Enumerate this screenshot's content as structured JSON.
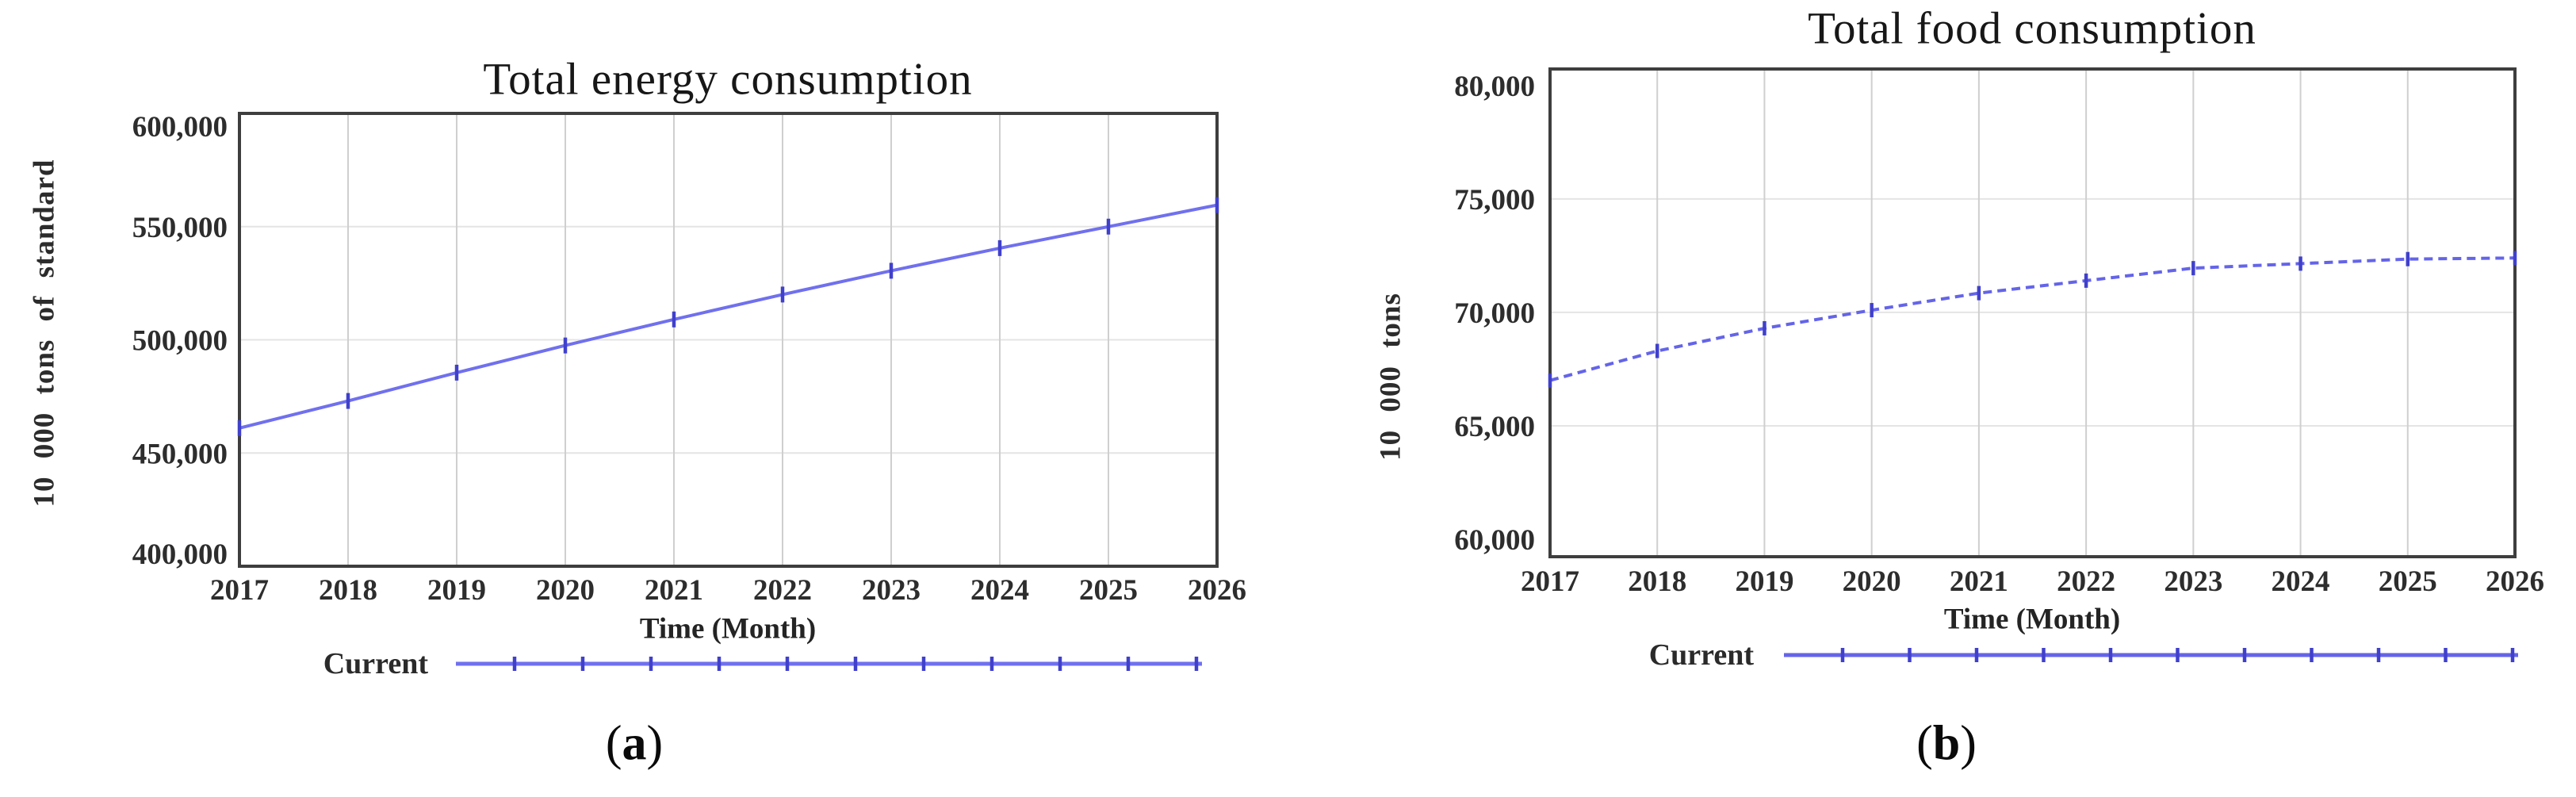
{
  "page": {
    "background": "#ffffff"
  },
  "colors": {
    "frame": "#3e3e3e",
    "grid_vertical": "#cfcfcf",
    "grid_horizontal": "#e4e4e4",
    "tick_text": "#2d2d2d",
    "line_blue": "#7070ee",
    "marker_blue": "#4040cc"
  },
  "figures": [
    {
      "caption_open": "(",
      "caption_letter": "a",
      "caption_close": ")"
    },
    {
      "caption_open": "(",
      "caption_letter": "b",
      "caption_close": ")"
    }
  ],
  "chart_data": [
    {
      "type": "line",
      "title": "Total energy consumption",
      "xlabel": "Time (Month)",
      "ylabel": "10 000 tons of standard",
      "legend_label": "Current",
      "legend_position": "bottom",
      "grid": true,
      "x": [
        2017,
        2018,
        2019,
        2020,
        2021,
        2022,
        2023,
        2024,
        2025,
        2026
      ],
      "xlim": [
        2017,
        2026
      ],
      "yticks": [
        400000,
        450000,
        500000,
        550000,
        600000
      ],
      "ylim": [
        400000,
        600000
      ],
      "series": [
        {
          "name": "Current",
          "style": "solid",
          "color": "#7070ee",
          "marker_color": "#4040cc",
          "values": [
            461000,
            473000,
            485500,
            497500,
            509000,
            520000,
            530500,
            540500,
            550000,
            559500
          ]
        }
      ]
    },
    {
      "type": "line",
      "title": "Total food consumption",
      "xlabel": "Time (Month)",
      "ylabel": "10 000 tons",
      "legend_label": "Current",
      "legend_position": "bottom",
      "grid": true,
      "x": [
        2017,
        2018,
        2019,
        2020,
        2021,
        2022,
        2023,
        2024,
        2025,
        2026
      ],
      "xlim": [
        2017,
        2026
      ],
      "yticks": [
        60000,
        65000,
        70000,
        75000,
        80000
      ],
      "ylim": [
        60000,
        80000
      ],
      "series": [
        {
          "name": "Current",
          "style": "dashed",
          "color": "#6464e9",
          "marker_color": "#4040cc",
          "values": [
            67000,
            68300,
            69300,
            70100,
            70850,
            71400,
            71950,
            72150,
            72350,
            72400
          ]
        }
      ]
    }
  ]
}
